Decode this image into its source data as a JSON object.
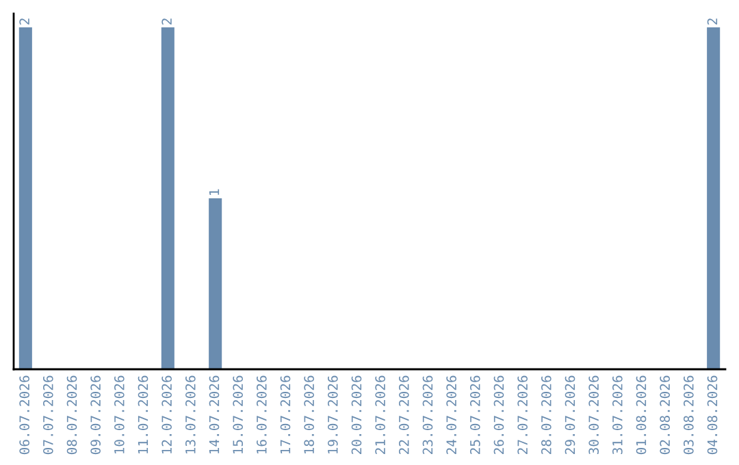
{
  "chart_data": {
    "type": "bar",
    "categories": [
      "06.07.2026",
      "07.07.2026",
      "08.07.2026",
      "09.07.2026",
      "10.07.2026",
      "11.07.2026",
      "12.07.2026",
      "13.07.2026",
      "14.07.2026",
      "15.07.2026",
      "16.07.2026",
      "17.07.2026",
      "18.07.2026",
      "19.07.2026",
      "20.07.2026",
      "21.07.2026",
      "22.07.2026",
      "23.07.2026",
      "24.07.2026",
      "25.07.2026",
      "26.07.2026",
      "27.07.2026",
      "28.07.2026",
      "29.07.2026",
      "30.07.2026",
      "31.07.2026",
      "01.08.2026",
      "02.08.2026",
      "03.08.2026",
      "04.08.2026"
    ],
    "values": [
      2,
      0,
      0,
      0,
      0,
      0,
      2,
      0,
      1,
      0,
      0,
      0,
      0,
      0,
      0,
      0,
      0,
      0,
      0,
      0,
      0,
      0,
      0,
      0,
      0,
      0,
      0,
      0,
      0,
      2
    ],
    "value_labels": [
      "2",
      null,
      null,
      null,
      null,
      null,
      "2",
      null,
      "1",
      null,
      null,
      null,
      null,
      null,
      null,
      null,
      null,
      null,
      null,
      null,
      null,
      null,
      null,
      null,
      null,
      null,
      null,
      null,
      null,
      "2"
    ],
    "color": "#6a8caf",
    "ylim": [
      0,
      2.08
    ],
    "tick_labels": "x",
    "grid": false,
    "legend": false
  }
}
